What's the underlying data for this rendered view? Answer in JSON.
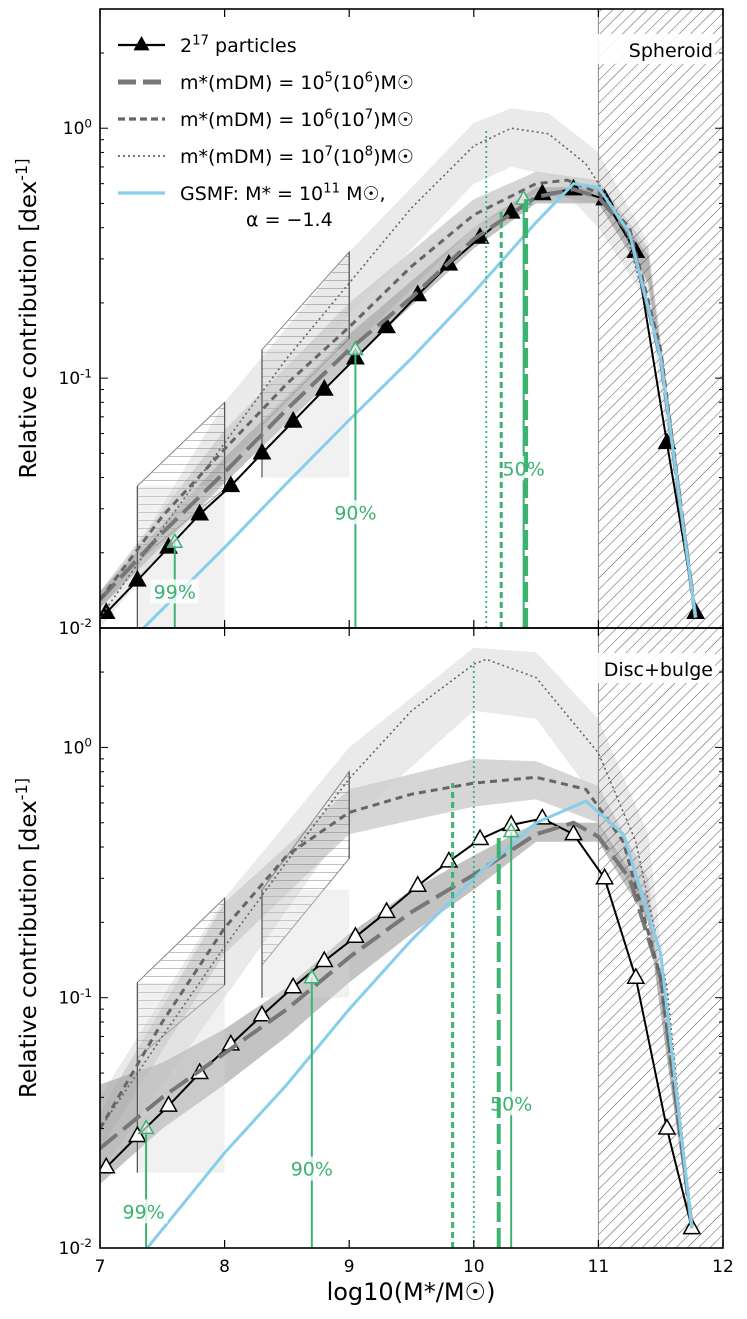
{
  "figure": {
    "xlabel": "log10(M*/M☉)",
    "shared_xlim": [
      7,
      12
    ],
    "x_ticks": [
      "7",
      "8",
      "9",
      "10",
      "11",
      "12"
    ],
    "legend": {
      "location": "top-left",
      "entries": [
        {
          "name": "particles_2_17",
          "label": "2^17 particles",
          "style": "solid-triangle",
          "color": "#000000"
        },
        {
          "name": "m5",
          "label": "m*(mDM) = 10^5(10^6)M☉",
          "style": "long-dash",
          "color": "#666666"
        },
        {
          "name": "m6",
          "label": "m*(mDM) = 10^6(10^7)M☉",
          "style": "short-dash",
          "color": "#666666"
        },
        {
          "name": "m7",
          "label": "m*(mDM) = 10^7(10^8)M☉",
          "style": "dotted",
          "color": "#666666"
        },
        {
          "name": "gsmf",
          "label": "GSMF: M* = 10^11 M☉,",
          "label2": "α = −1.4",
          "style": "solid",
          "color": "#87ceeb"
        }
      ]
    },
    "colors": {
      "green": "#3cb371",
      "black": "#000000",
      "grey": "#666666",
      "band_light": "#e5e5e5",
      "band_dark": "#b8b8b8",
      "gsmf": "#87ceeb"
    }
  },
  "chart_data": [
    {
      "type": "line",
      "panel": "top",
      "title": "Spheroid",
      "xlabel": "",
      "ylabel": "Relative contribution [dex^-1]",
      "xlim": [
        7,
        12
      ],
      "ylim": [
        0.01,
        3.0
      ],
      "yscale": "log",
      "y_tick_labels": [
        "10^-2",
        "10^-1",
        "10^0"
      ],
      "hatched_region": {
        "x_from": 11,
        "x_to": 12
      },
      "resolution_boxes": [
        {
          "x_from": 7.3,
          "x_to": 8.0,
          "y_low": 0.01,
          "y_high": 0.037,
          "y_high_end": 0.08
        },
        {
          "x_from": 8.3,
          "x_to": 9.0,
          "y_low": 0.04,
          "y_high": 0.13,
          "y_high_end": 0.32
        }
      ],
      "series": [
        {
          "name": "2^17 particles",
          "marker": "filled-triangle",
          "x": [
            7.05,
            7.3,
            7.55,
            7.8,
            8.05,
            8.3,
            8.55,
            8.8,
            9.05,
            9.3,
            9.55,
            9.8,
            10.05,
            10.3,
            10.55,
            10.8,
            11.05,
            11.3,
            11.55,
            11.78
          ],
          "y": [
            0.0115,
            0.0155,
            0.021,
            0.0285,
            0.037,
            0.05,
            0.067,
            0.09,
            0.12,
            0.16,
            0.215,
            0.285,
            0.365,
            0.46,
            0.545,
            0.57,
            0.52,
            0.32,
            0.055,
            0.0115
          ]
        },
        {
          "name": "m*=10^5",
          "style": "long-dash",
          "x": [
            7.0,
            7.5,
            8.0,
            8.5,
            9.0,
            9.5,
            10.0,
            10.5,
            10.8,
            11.0,
            11.25,
            11.5,
            11.78
          ],
          "y": [
            0.013,
            0.024,
            0.042,
            0.075,
            0.13,
            0.21,
            0.36,
            0.53,
            0.57,
            0.53,
            0.38,
            0.12,
            0.011
          ]
        },
        {
          "name": "m*=10^6",
          "style": "short-dash",
          "x": [
            7.0,
            7.5,
            8.0,
            8.5,
            9.0,
            9.5,
            10.0,
            10.5,
            10.75,
            11.0,
            11.25,
            11.5,
            11.78
          ],
          "y": [
            0.013,
            0.028,
            0.052,
            0.095,
            0.16,
            0.28,
            0.45,
            0.6,
            0.62,
            0.55,
            0.4,
            0.13,
            0.011
          ]
        },
        {
          "name": "m*=10^7",
          "style": "dotted",
          "x": [
            7.0,
            7.5,
            8.0,
            8.5,
            9.0,
            9.5,
            10.0,
            10.3,
            10.6,
            10.9,
            11.2,
            11.5,
            11.78
          ],
          "y": [
            0.011,
            0.025,
            0.055,
            0.12,
            0.24,
            0.48,
            0.85,
            1.0,
            0.95,
            0.72,
            0.42,
            0.12,
            0.011
          ]
        },
        {
          "name": "GSMF",
          "style": "solid-blue",
          "x": [
            7.35,
            8.0,
            8.5,
            9.0,
            9.5,
            10.0,
            10.5,
            10.8,
            11.0,
            11.25,
            11.5,
            11.78
          ],
          "y": [
            0.01,
            0.021,
            0.038,
            0.068,
            0.12,
            0.22,
            0.42,
            0.6,
            0.58,
            0.38,
            0.12,
            0.011
          ]
        }
      ],
      "bands": [
        {
          "name": "m7 spread",
          "tone": "light",
          "x": [
            7.0,
            8.0,
            9.0,
            10.0,
            10.3,
            10.6,
            11.0,
            11.4,
            11.78
          ],
          "lower": [
            0.01,
            0.04,
            0.18,
            0.6,
            0.7,
            0.65,
            0.4,
            0.2,
            0.01
          ],
          "upper": [
            0.012,
            0.08,
            0.32,
            1.05,
            1.2,
            1.15,
            0.8,
            0.35,
            0.012
          ]
        },
        {
          "name": "m6 spread",
          "tone": "mid",
          "x": [
            7.0,
            8.0,
            9.0,
            10.0,
            10.5,
            11.0,
            11.4,
            11.78
          ],
          "lower": [
            0.012,
            0.045,
            0.13,
            0.4,
            0.55,
            0.5,
            0.25,
            0.011
          ],
          "upper": [
            0.014,
            0.062,
            0.2,
            0.52,
            0.67,
            0.62,
            0.33,
            0.012
          ]
        },
        {
          "name": "m5 spread",
          "tone": "dark",
          "x": [
            7.0,
            8.0,
            9.0,
            10.0,
            10.5,
            11.0,
            11.4,
            11.78
          ],
          "lower": [
            0.012,
            0.038,
            0.115,
            0.33,
            0.5,
            0.5,
            0.24,
            0.011
          ],
          "upper": [
            0.014,
            0.048,
            0.15,
            0.4,
            0.58,
            0.58,
            0.31,
            0.012
          ]
        }
      ],
      "percentile_markers": [
        {
          "label": "99%",
          "x": 7.6,
          "y_top": 0.022,
          "style": "solid",
          "marker": true,
          "label_x": 7.6,
          "label_y": 0.0135
        },
        {
          "label": "90%",
          "x": 9.05,
          "y_top": 0.13,
          "style": "solid",
          "marker": true,
          "label_x": 9.05,
          "label_y": 0.028
        },
        {
          "label": "50%",
          "x": 10.4,
          "y_top": 0.52,
          "style": "solid",
          "marker": true,
          "label_x": 10.4,
          "label_y": 0.042
        },
        {
          "label": "",
          "x": 10.42,
          "y_top": 0.52,
          "style": "long-dash",
          "marker": false
        },
        {
          "label": "",
          "x": 10.22,
          "y_top": 0.47,
          "style": "short-dash",
          "marker": false
        },
        {
          "label": "",
          "x": 10.1,
          "y_top": 1.0,
          "style": "dotted",
          "marker": false
        }
      ]
    },
    {
      "type": "line",
      "panel": "bottom",
      "title": "Disc+bulge",
      "xlabel": "log10(M*/M☉)",
      "ylabel": "Relative contribution [dex^-1]",
      "xlim": [
        7,
        12
      ],
      "ylim": [
        0.01,
        3.0
      ],
      "yscale": "log",
      "y_tick_labels": [
        "10^-2",
        "10^-1",
        "10^0"
      ],
      "hatched_region": {
        "x_from": 11,
        "x_to": 12
      },
      "resolution_boxes": [
        {
          "x_from": 7.3,
          "x_to": 8.0,
          "y_low": 0.02,
          "y_high": 0.115,
          "y_high_end": 0.25
        },
        {
          "x_from": 8.3,
          "x_to": 9.0,
          "y_low": 0.1,
          "y_high": 0.27,
          "y_high_end": 0.8
        }
      ],
      "series": [
        {
          "name": "2^17 particles",
          "marker": "open-triangle",
          "x": [
            7.05,
            7.3,
            7.55,
            7.8,
            8.05,
            8.3,
            8.55,
            8.8,
            9.05,
            9.3,
            9.55,
            9.8,
            10.05,
            10.3,
            10.55,
            10.8,
            11.05,
            11.3,
            11.55,
            11.75
          ],
          "y": [
            0.021,
            0.028,
            0.037,
            0.05,
            0.065,
            0.085,
            0.11,
            0.14,
            0.175,
            0.22,
            0.28,
            0.35,
            0.43,
            0.49,
            0.52,
            0.45,
            0.3,
            0.12,
            0.03,
            0.012
          ]
        },
        {
          "name": "m*=10^5",
          "style": "long-dash",
          "x": [
            7.0,
            7.5,
            8.0,
            8.5,
            9.0,
            9.5,
            10.0,
            10.5,
            10.8,
            11.0,
            11.25,
            11.5,
            11.75
          ],
          "y": [
            0.025,
            0.04,
            0.06,
            0.09,
            0.145,
            0.22,
            0.31,
            0.45,
            0.5,
            0.44,
            0.3,
            0.12,
            0.012
          ]
        },
        {
          "name": "m*=10^6",
          "style": "short-dash",
          "x": [
            7.0,
            7.5,
            8.0,
            8.5,
            9.0,
            9.5,
            10.0,
            10.5,
            10.9,
            11.2,
            11.5,
            11.75
          ],
          "y": [
            0.03,
            0.08,
            0.19,
            0.37,
            0.55,
            0.65,
            0.72,
            0.76,
            0.68,
            0.42,
            0.12,
            0.012
          ]
        },
        {
          "name": "m*=10^7",
          "style": "dotted",
          "x": [
            7.0,
            7.5,
            8.0,
            8.5,
            9.0,
            9.5,
            10.0,
            10.1,
            10.5,
            11.0,
            11.3,
            11.55,
            11.75
          ],
          "y": [
            0.03,
            0.07,
            0.16,
            0.35,
            0.75,
            1.4,
            2.15,
            2.25,
            1.9,
            0.95,
            0.42,
            0.11,
            0.012
          ]
        },
        {
          "name": "GSMF",
          "style": "solid-blue",
          "x": [
            7.38,
            8.0,
            8.5,
            9.0,
            9.5,
            10.0,
            10.5,
            10.9,
            11.2,
            11.5,
            11.75
          ],
          "y": [
            0.01,
            0.024,
            0.045,
            0.09,
            0.17,
            0.3,
            0.5,
            0.61,
            0.45,
            0.15,
            0.012
          ]
        }
      ],
      "bands": [
        {
          "name": "m7 spread",
          "tone": "light",
          "x": [
            7.0,
            8.0,
            9.0,
            10.0,
            10.5,
            11.0,
            11.4,
            11.75
          ],
          "lower": [
            0.02,
            0.1,
            0.5,
            1.4,
            1.3,
            0.6,
            0.2,
            0.011
          ],
          "upper": [
            0.04,
            0.25,
            1.0,
            2.5,
            2.4,
            1.3,
            0.45,
            0.014
          ]
        },
        {
          "name": "m6 spread",
          "tone": "mid",
          "x": [
            7.0,
            8.0,
            9.0,
            10.0,
            10.5,
            11.0,
            11.4,
            11.75
          ],
          "lower": [
            0.025,
            0.15,
            0.45,
            0.58,
            0.62,
            0.5,
            0.2,
            0.011
          ],
          "upper": [
            0.035,
            0.24,
            0.68,
            0.9,
            0.88,
            0.7,
            0.3,
            0.013
          ]
        },
        {
          "name": "m5 spread",
          "tone": "dark",
          "x": [
            7.0,
            7.5,
            8.0,
            8.5,
            9.0,
            9.5,
            10.0,
            10.5,
            11.0,
            11.4,
            11.75
          ],
          "lower": [
            0.018,
            0.03,
            0.045,
            0.07,
            0.115,
            0.18,
            0.27,
            0.42,
            0.42,
            0.2,
            0.011
          ],
          "upper": [
            0.045,
            0.055,
            0.075,
            0.11,
            0.18,
            0.27,
            0.37,
            0.5,
            0.5,
            0.25,
            0.013
          ]
        }
      ],
      "percentile_markers": [
        {
          "label": "99%",
          "x": 7.37,
          "y_top": 0.03,
          "style": "solid",
          "marker": true,
          "label_x": 7.35,
          "label_y": 0.0135
        },
        {
          "label": "90%",
          "x": 8.7,
          "y_top": 0.12,
          "style": "solid",
          "marker": true,
          "label_x": 8.7,
          "label_y": 0.02
        },
        {
          "label": "50%",
          "x": 10.3,
          "y_top": 0.46,
          "style": "solid",
          "marker": true,
          "label_x": 10.3,
          "label_y": 0.0365
        },
        {
          "label": "",
          "x": 10.2,
          "y_top": 0.46,
          "style": "long-dash",
          "marker": false
        },
        {
          "label": "",
          "x": 9.83,
          "y_top": 0.72,
          "style": "short-dash",
          "marker": false
        },
        {
          "label": "",
          "x": 10.0,
          "y_top": 2.2,
          "style": "dotted",
          "marker": false
        }
      ]
    }
  ]
}
